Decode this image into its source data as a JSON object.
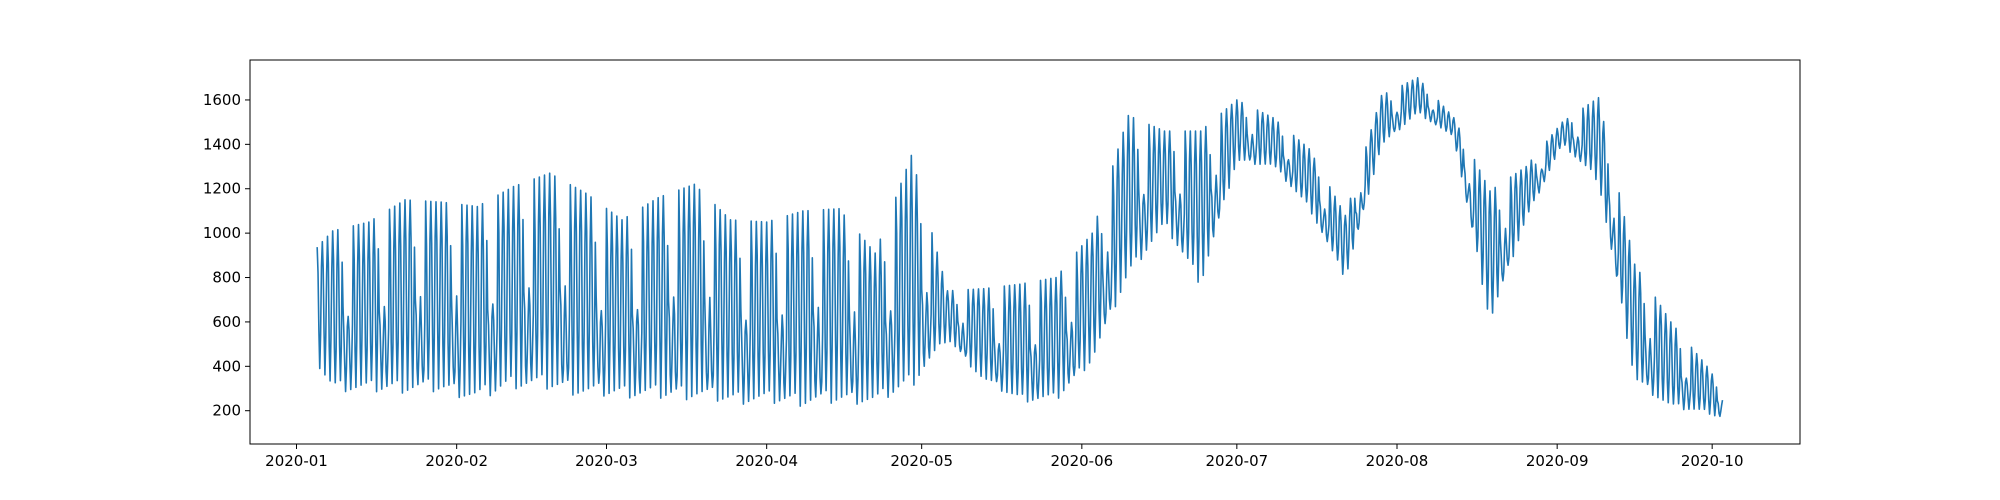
{
  "chart_data": {
    "type": "line",
    "x_type": "date",
    "xlim": [
      "2019-12-23",
      "2020-10-18"
    ],
    "ylim": [
      50,
      1780
    ],
    "grid": false,
    "xticks": [
      {
        "value": "2020-01-01",
        "label": "2020-01"
      },
      {
        "value": "2020-02-01",
        "label": "2020-02"
      },
      {
        "value": "2020-03-01",
        "label": "2020-03"
      },
      {
        "value": "2020-04-01",
        "label": "2020-04"
      },
      {
        "value": "2020-05-01",
        "label": "2020-05"
      },
      {
        "value": "2020-06-01",
        "label": "2020-06"
      },
      {
        "value": "2020-07-01",
        "label": "2020-07"
      },
      {
        "value": "2020-08-01",
        "label": "2020-08"
      },
      {
        "value": "2020-09-01",
        "label": "2020-09"
      },
      {
        "value": "2020-10-01",
        "label": "2020-10"
      }
    ],
    "yticks": [
      {
        "value": 200,
        "label": "200"
      },
      {
        "value": 400,
        "label": "400"
      },
      {
        "value": 600,
        "label": "600"
      },
      {
        "value": 800,
        "label": "800"
      },
      {
        "value": 1000,
        "label": "1000"
      },
      {
        "value": 1200,
        "label": "1200"
      },
      {
        "value": 1400,
        "label": "1400"
      },
      {
        "value": 1600,
        "label": "1600"
      }
    ],
    "series": [
      {
        "color": "#1f77b4",
        "x": [
          "2020-01-01",
          "2020-01-08",
          "2020-01-15",
          "2020-01-22",
          "2020-01-29",
          "2020-02-05",
          "2020-02-12",
          "2020-02-19",
          "2020-02-26",
          "2020-03-04",
          "2020-03-11",
          "2020-03-18",
          "2020-03-25",
          "2020-04-01",
          "2020-04-08",
          "2020-04-15",
          "2020-04-22",
          "2020-04-29",
          "2020-05-06",
          "2020-05-13",
          "2020-05-20",
          "2020-05-27",
          "2020-06-03",
          "2020-06-10",
          "2020-06-17",
          "2020-06-24",
          "2020-07-01",
          "2020-07-08",
          "2020-07-15",
          "2020-07-22",
          "2020-07-29",
          "2020-08-05",
          "2020-08-12",
          "2020-08-19",
          "2020-08-26",
          "2020-09-02",
          "2020-09-09",
          "2020-09-16",
          "2020-09-23",
          "2020-09-30",
          "2020-10-02"
        ],
        "low": [
          560,
          290,
          280,
          280,
          280,
          240,
          300,
          290,
          260,
          260,
          250,
          250,
          230,
          230,
          220,
          230,
          230,
          300,
          520,
          330,
          240,
          240,
          420,
          800,
          1030,
          760,
          1320,
          1300,
          1110,
          790,
          1390,
          1540,
          1430,
          590,
          1060,
          1400,
          1230,
          330,
          210,
          190,
          170
        ],
        "high": [
          840,
          1010,
          1050,
          1150,
          1140,
          1120,
          1210,
          1270,
          1180,
          1060,
          1160,
          1220,
          1060,
          1050,
          1100,
          1110,
          910,
          1350,
          740,
          750,
          770,
          800,
          1000,
          1530,
          1460,
          1460,
          1600,
          1520,
          1380,
          1080,
          1620,
          1700,
          1520,
          1190,
          1300,
          1500,
          1610,
          860,
          600,
          400,
          330
        ]
      }
    ]
  }
}
